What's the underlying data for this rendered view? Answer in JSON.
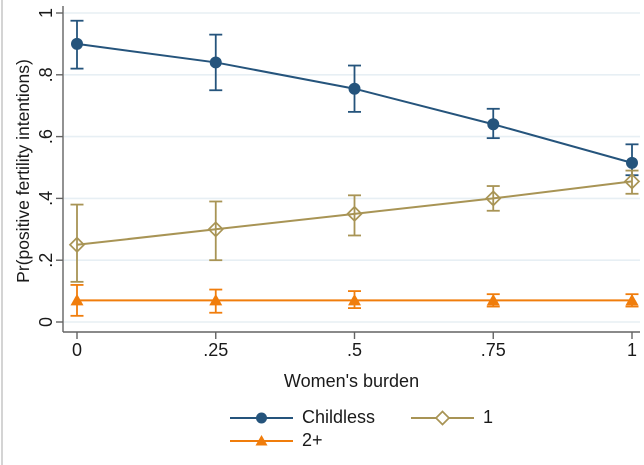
{
  "figure": {
    "background": "#ffffff"
  },
  "chart_data": {
    "type": "line",
    "title": "",
    "xlabel": "Women's burden",
    "ylabel": "Pr(positive fertility intentions)",
    "x": [
      0,
      0.25,
      0.5,
      0.75,
      1
    ],
    "x_tick_labels": [
      "0",
      ".25",
      ".5",
      ".75",
      "1"
    ],
    "y_ticks": [
      0,
      0.2,
      0.4,
      0.6,
      0.8,
      1
    ],
    "y_tick_labels": [
      "0",
      ".2",
      ".4",
      ".6",
      ".8",
      "1"
    ],
    "xlim": [
      0,
      1
    ],
    "ylim": [
      0,
      1
    ],
    "grid": "horizontal",
    "legend_position": "bottom",
    "series": [
      {
        "name": "Childless",
        "marker": "circle",
        "color": "#25547C",
        "values": [
          0.9,
          0.84,
          0.755,
          0.64,
          0.515
        ],
        "ci_low": [
          0.82,
          0.75,
          0.68,
          0.595,
          0.475
        ],
        "ci_high": [
          0.975,
          0.93,
          0.83,
          0.69,
          0.575
        ]
      },
      {
        "name": "1",
        "marker": "diamond-hollow",
        "color": "#A89455",
        "values": [
          0.25,
          0.3,
          0.35,
          0.4,
          0.455
        ],
        "ci_low": [
          0.13,
          0.2,
          0.28,
          0.36,
          0.415
        ],
        "ci_high": [
          0.38,
          0.39,
          0.41,
          0.44,
          0.49
        ]
      },
      {
        "name": "2+",
        "marker": "triangle",
        "color": "#F07D0C",
        "values": [
          0.07,
          0.07,
          0.07,
          0.07,
          0.07
        ],
        "ci_low": [
          0.02,
          0.03,
          0.045,
          0.05,
          0.05
        ],
        "ci_high": [
          0.12,
          0.105,
          0.1,
          0.09,
          0.09
        ]
      }
    ],
    "colors": {
      "grid": "#E7EFF4",
      "axis": "#636363",
      "text": "#1A1A1A"
    }
  }
}
